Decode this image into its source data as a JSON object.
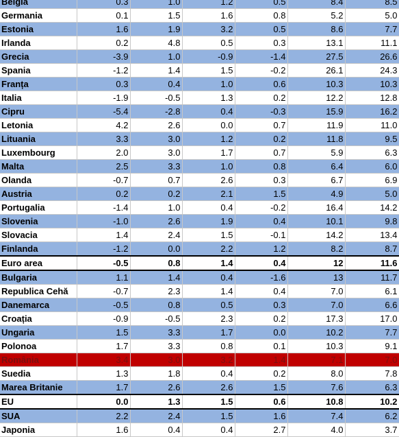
{
  "table": {
    "rows": [
      {
        "name": "Belgia",
        "values": [
          "0.3",
          "1.0",
          "1.2",
          "0.5",
          "8.4",
          "8.5"
        ],
        "style": "blue"
      },
      {
        "name": "Germania",
        "values": [
          "0.1",
          "1.5",
          "1.6",
          "0.8",
          "5.2",
          "5.0"
        ],
        "style": "white"
      },
      {
        "name": "Estonia",
        "values": [
          "1.6",
          "1.9",
          "3.2",
          "0.5",
          "8.6",
          "7.7"
        ],
        "style": "blue"
      },
      {
        "name": "Irlanda",
        "values": [
          "0.2",
          "4.8",
          "0.5",
          "0.3",
          "13.1",
          "11.1"
        ],
        "style": "white"
      },
      {
        "name": "Grecia",
        "values": [
          "-3.9",
          "1.0",
          "-0.9",
          "-1.4",
          "27.5",
          "26.6"
        ],
        "style": "blue"
      },
      {
        "name": "Spania",
        "values": [
          "-1.2",
          "1.4",
          "1.5",
          "-0.2",
          "26.1",
          "24.3"
        ],
        "style": "white"
      },
      {
        "name": "Franța",
        "values": [
          "0.3",
          "0.4",
          "1.0",
          "0.6",
          "10.3",
          "10.3"
        ],
        "style": "blue"
      },
      {
        "name": "Italia",
        "values": [
          "-1.9",
          "-0.5",
          "1.3",
          "0.2",
          "12.2",
          "12.8"
        ],
        "style": "white"
      },
      {
        "name": "Cipru",
        "values": [
          "-5.4",
          "-2.8",
          "0.4",
          "-0.3",
          "15.9",
          "16.2"
        ],
        "style": "blue"
      },
      {
        "name": "Letonia",
        "values": [
          "4.2",
          "2.6",
          "0.0",
          "0.7",
          "11.9",
          "11.0"
        ],
        "style": "white"
      },
      {
        "name": "Lituania",
        "values": [
          "3.3",
          "3.0",
          "1.2",
          "0.2",
          "11.8",
          "9.5"
        ],
        "style": "blue"
      },
      {
        "name": "Luxembourg",
        "values": [
          "2.0",
          "3.0",
          "1.7",
          "0.7",
          "5.9",
          "6.3"
        ],
        "style": "white"
      },
      {
        "name": "Malta",
        "values": [
          "2.5",
          "3.3",
          "1.0",
          "0.8",
          "6.4",
          "6.0"
        ],
        "style": "blue"
      },
      {
        "name": "Olanda",
        "values": [
          "-0.7",
          "0.7",
          "2.6",
          "0.3",
          "6.7",
          "6.9"
        ],
        "style": "white"
      },
      {
        "name": "Austria",
        "values": [
          "0.2",
          "0.2",
          "2.1",
          "1.5",
          "4.9",
          "5.0"
        ],
        "style": "blue"
      },
      {
        "name": "Portugalia",
        "values": [
          "-1.4",
          "1.0",
          "0.4",
          "-0.2",
          "16.4",
          "14.2"
        ],
        "style": "white"
      },
      {
        "name": "Slovenia",
        "values": [
          "-1.0",
          "2.6",
          "1.9",
          "0.4",
          "10.1",
          "9.8"
        ],
        "style": "blue"
      },
      {
        "name": "Slovacia",
        "values": [
          "1.4",
          "2.4",
          "1.5",
          "-0.1",
          "14.2",
          "13.4"
        ],
        "style": "white"
      },
      {
        "name": "Finlanda",
        "values": [
          "-1.2",
          "0.0",
          "2.2",
          "1.2",
          "8.2",
          "8.7"
        ],
        "style": "blue"
      },
      {
        "name": "Euro area",
        "values": [
          "-0.5",
          "0.8",
          "1.4",
          "0.4",
          "12",
          "11.6"
        ],
        "style": "total"
      },
      {
        "name": "Bulgaria",
        "values": [
          "1.1",
          "1.4",
          "0.4",
          "-1.6",
          "13",
          "11.7"
        ],
        "style": "blue"
      },
      {
        "name": "Republica Cehă",
        "values": [
          "-0.7",
          "2.3",
          "1.4",
          "0.4",
          "7.0",
          "6.1"
        ],
        "style": "white"
      },
      {
        "name": "Danemarca",
        "values": [
          "-0.5",
          "0.8",
          "0.5",
          "0.3",
          "7.0",
          "6.6"
        ],
        "style": "blue"
      },
      {
        "name": "Croația",
        "values": [
          "-0.9",
          "-0.5",
          "2.3",
          "0.2",
          "17.3",
          "17.0"
        ],
        "style": "white"
      },
      {
        "name": "Ungaria",
        "values": [
          "1.5",
          "3.3",
          "1.7",
          "0.0",
          "10.2",
          "7.7"
        ],
        "style": "blue"
      },
      {
        "name": "Polonoa",
        "values": [
          "1.7",
          "3.3",
          "0.8",
          "0.1",
          "10.3",
          "9.1"
        ],
        "style": "white"
      },
      {
        "name": "România",
        "values": [
          "3.4",
          "3.0",
          "3.2",
          "1.4",
          "7.1",
          "7.0"
        ],
        "style": "red"
      },
      {
        "name": "Suedia",
        "values": [
          "1.3",
          "1.8",
          "0.4",
          "0.2",
          "8.0",
          "7.8"
        ],
        "style": "white"
      },
      {
        "name": "Marea Britanie",
        "values": [
          "1.7",
          "2.6",
          "2.6",
          "1.5",
          "7.6",
          "6.3"
        ],
        "style": "blue"
      },
      {
        "name": "EU",
        "values": [
          "0.0",
          "1.3",
          "1.5",
          "0.6",
          "10.8",
          "10.2"
        ],
        "style": "total"
      },
      {
        "name": "SUA",
        "values": [
          "2.2",
          "2.4",
          "1.5",
          "1.6",
          "7.4",
          "6.2"
        ],
        "style": "blue"
      },
      {
        "name": "Japonia",
        "values": [
          "1.6",
          "0.4",
          "0.4",
          "2.7",
          "4.0",
          "3.7"
        ],
        "style": "white"
      }
    ]
  },
  "colors": {
    "band_blue": "#94b3e0",
    "band_white": "#ffffff",
    "highlight_red": "#c00000"
  }
}
